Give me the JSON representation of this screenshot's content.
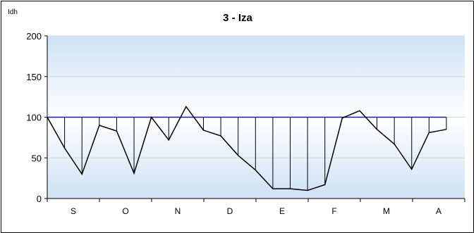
{
  "chart_data": {
    "type": "line",
    "title": "3 - Iza",
    "unit_label": "Idh",
    "ylim": [
      0,
      200
    ],
    "yticks": [
      0,
      50,
      100,
      150,
      200
    ],
    "month_labels": [
      "S",
      "O",
      "N",
      "D",
      "E",
      "F",
      "M",
      "A"
    ],
    "reference_value": 100,
    "grid": true,
    "legend": "none",
    "series": [
      {
        "values": [
          100,
          62,
          30,
          90,
          83,
          31,
          100,
          72,
          113,
          84,
          77,
          53,
          35,
          12,
          12,
          10,
          17,
          99,
          108,
          85,
          67,
          36,
          81,
          85
        ]
      }
    ],
    "colors": {
      "reference_line": "#1a1aa8",
      "series_line": "#000000",
      "plot_bg_top": "#cfe1f5",
      "plot_bg_mid": "#ffffff",
      "plot_bg_bottom": "#cfe1f5",
      "gridline": "#d8d8d8"
    }
  }
}
